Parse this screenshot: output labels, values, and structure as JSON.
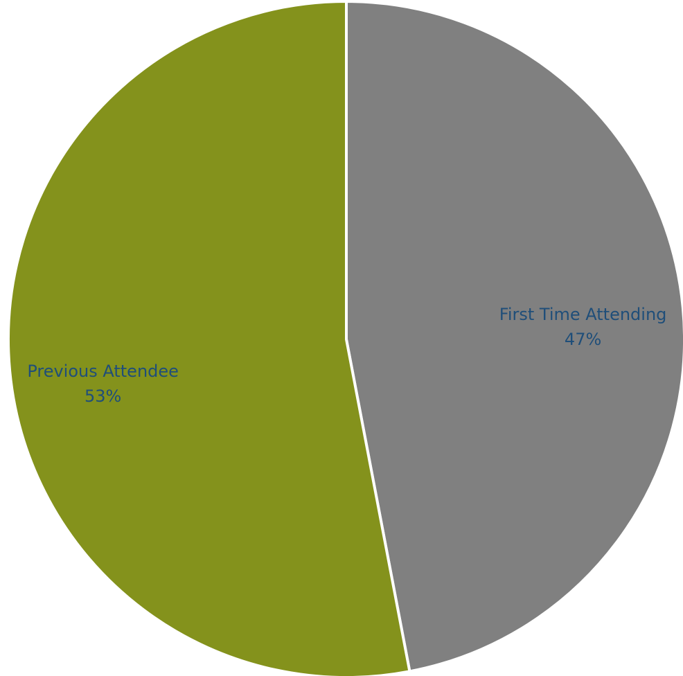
{
  "chart_data": {
    "type": "pie",
    "title": "",
    "start_angle_deg": 0,
    "direction": "clockwise",
    "slices": [
      {
        "label": "First Time Attending",
        "value": 47,
        "value_label": "47%",
        "color": "#808080"
      },
      {
        "label": "Previous Attendee",
        "value": 53,
        "value_label": "53%",
        "color": "#84921C"
      }
    ]
  },
  "colors": {
    "label_text": "#1F4E79",
    "slice_border": "#ffffff"
  }
}
